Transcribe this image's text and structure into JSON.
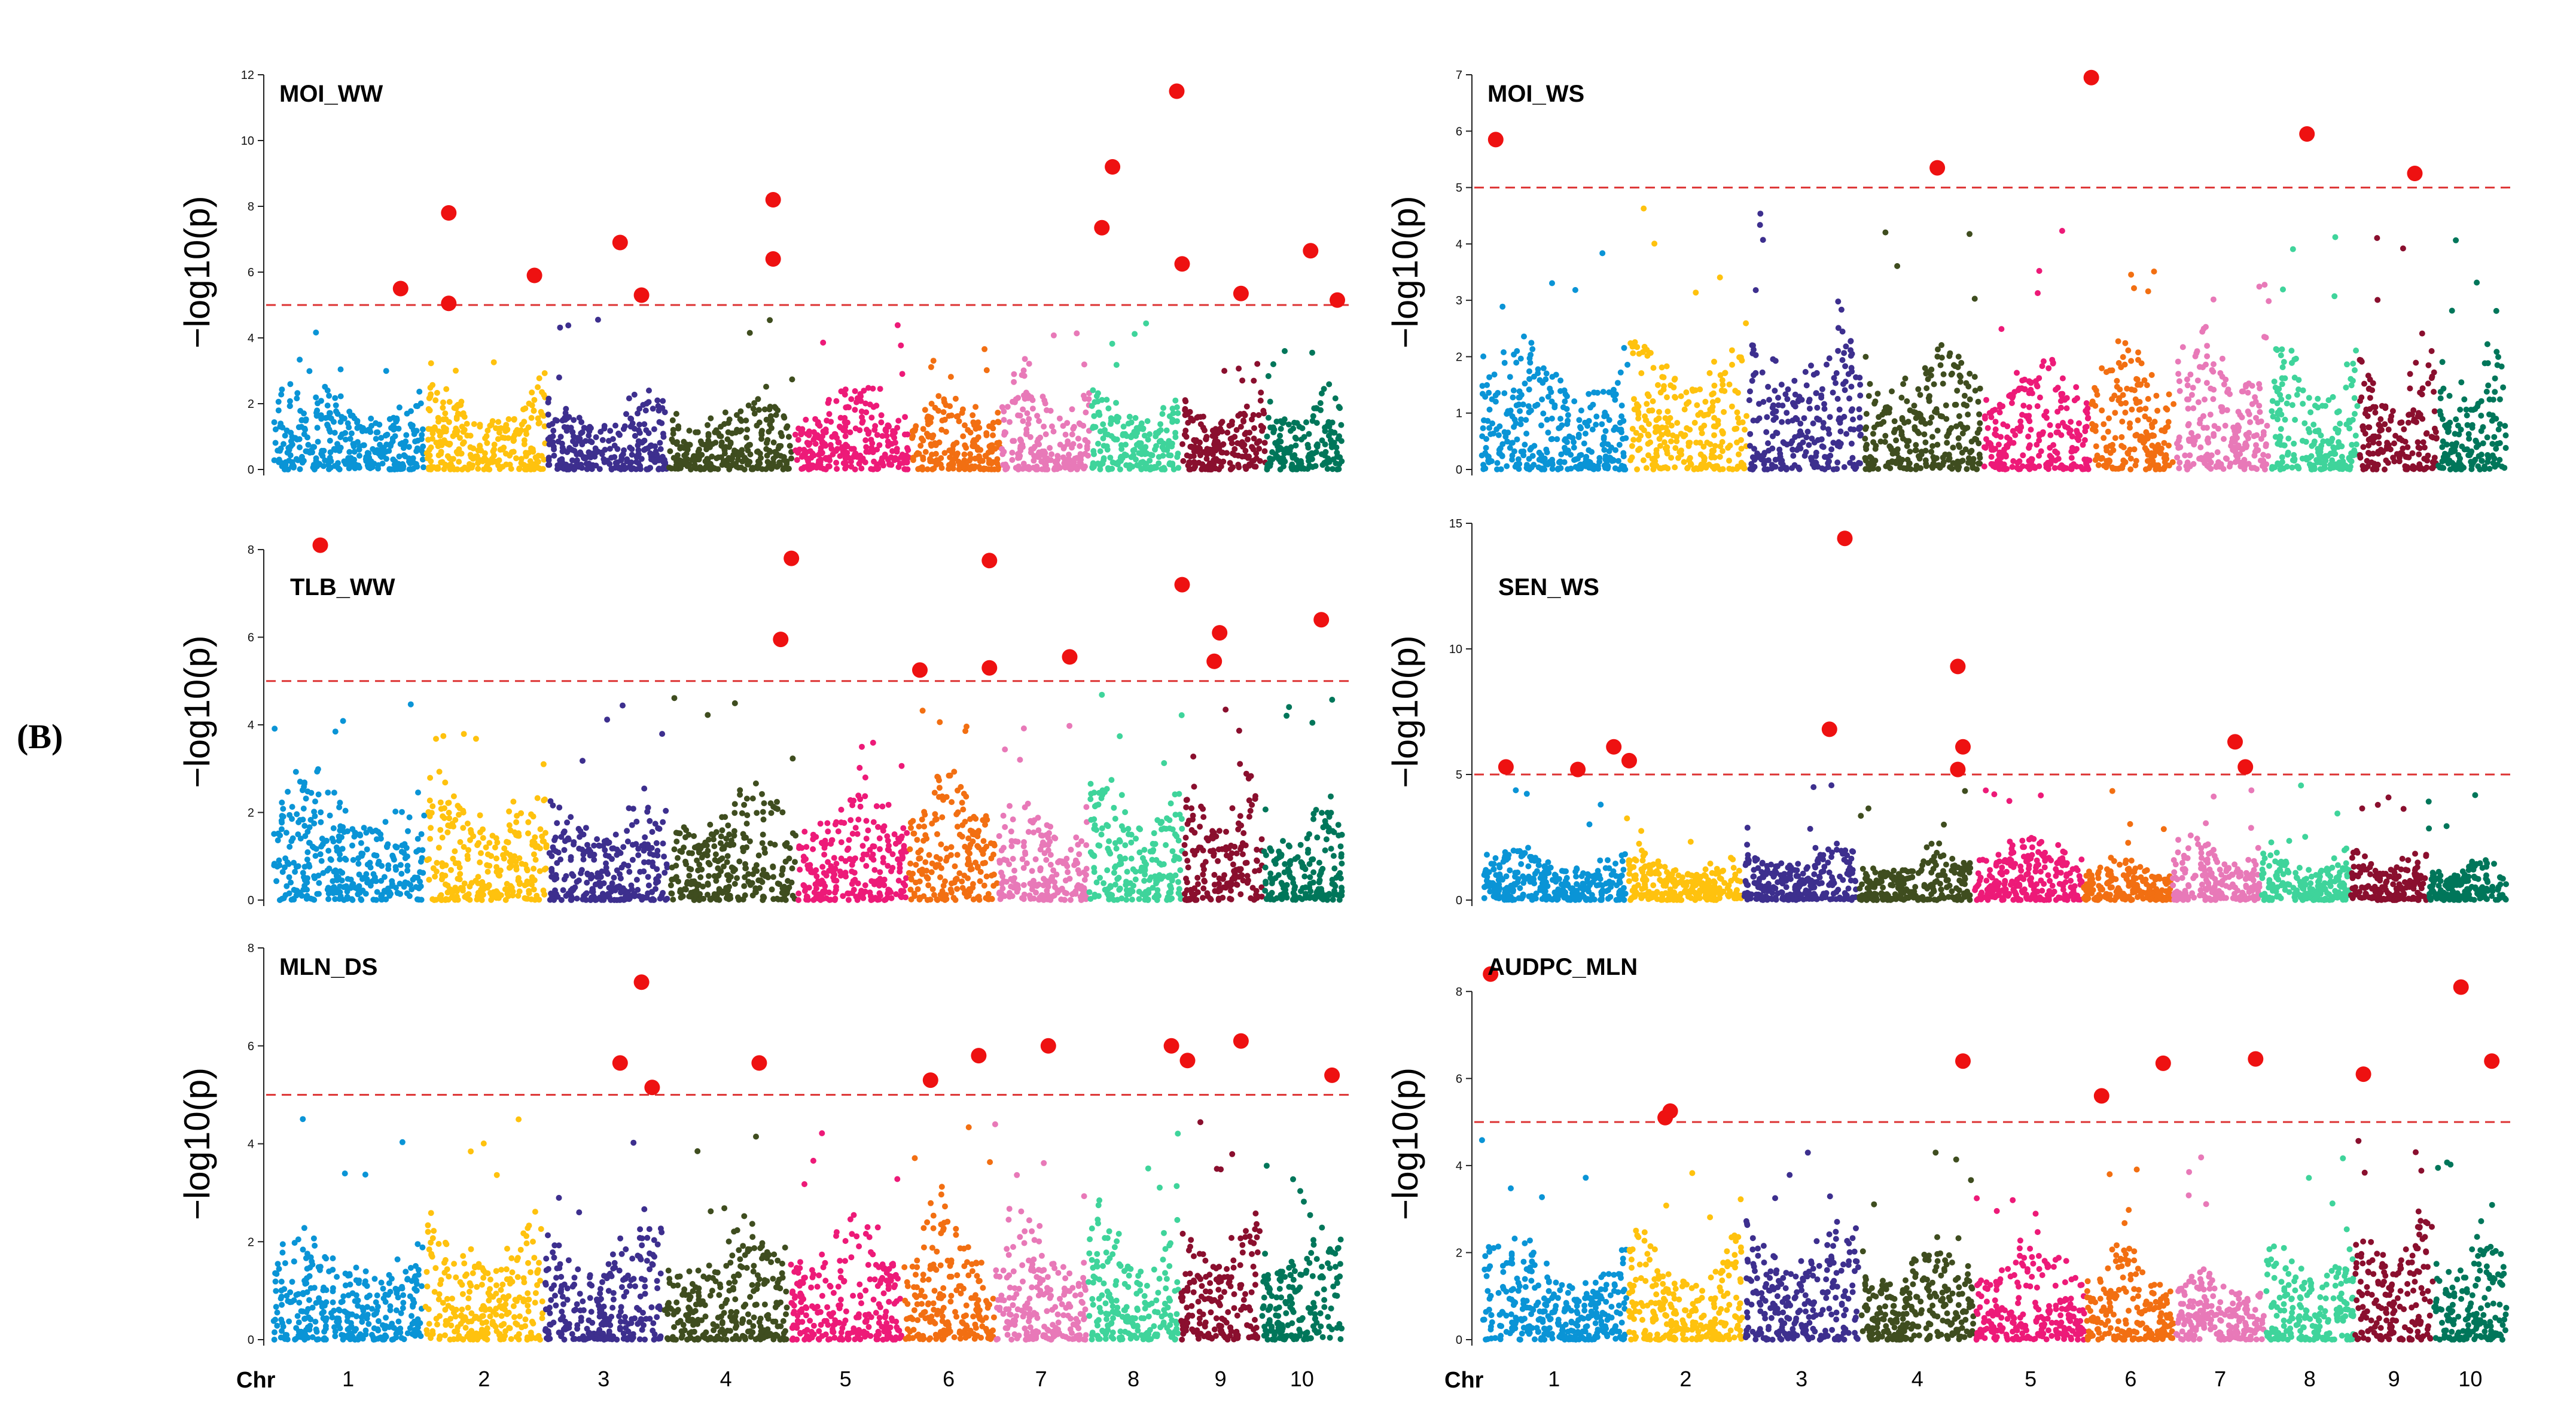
{
  "figure_label": "(B)",
  "axis": {
    "ylabel": "−log10(p)",
    "chr_word": "Chr",
    "chromosomes": [
      "1",
      "2",
      "3",
      "4",
      "5",
      "6",
      "7",
      "8",
      "9",
      "10"
    ]
  },
  "colors": {
    "chromosomes": [
      "#0a94d6",
      "#ffc20e",
      "#3d2f8e",
      "#3f4d1f",
      "#ed1a78",
      "#f26f12",
      "#e879b8",
      "#3fd49b",
      "#8a0f2e",
      "#00765a"
    ],
    "significant": "#ee1111",
    "threshold": "#dd3333",
    "axis": "#222222"
  },
  "chart_data": [
    {
      "type": "scatter",
      "title": "MOI_WW",
      "column": "left",
      "row": 0,
      "ylim": [
        0,
        12
      ],
      "yticks": [
        0,
        2,
        4,
        6,
        8,
        10,
        12
      ],
      "threshold": 5,
      "xlim": [
        0,
        10
      ],
      "chr_widths": [
        1.7,
        1.35,
        1.35,
        1.4,
        1.3,
        1.0,
        1.0,
        1.0,
        0.95,
        0.85
      ],
      "chr_levels": [
        2.9,
        2.7,
        2.5,
        2.4,
        2.8,
        2.7,
        3.1,
        2.6,
        2.7,
        2.7
      ],
      "significant_snps": [
        {
          "x": 1.2,
          "y": 5.5
        },
        {
          "x": 1.65,
          "y": 7.8
        },
        {
          "x": 1.65,
          "y": 5.05
        },
        {
          "x": 2.45,
          "y": 5.9
        },
        {
          "x": 3.25,
          "y": 6.9
        },
        {
          "x": 3.45,
          "y": 5.3
        },
        {
          "x": 4.68,
          "y": 8.2
        },
        {
          "x": 4.68,
          "y": 6.4
        },
        {
          "x": 7.75,
          "y": 7.35
        },
        {
          "x": 7.85,
          "y": 9.2
        },
        {
          "x": 8.45,
          "y": 11.5
        },
        {
          "x": 8.5,
          "y": 6.25
        },
        {
          "x": 9.05,
          "y": 5.35
        },
        {
          "x": 9.7,
          "y": 6.65
        },
        {
          "x": 9.95,
          "y": 5.15
        }
      ]
    },
    {
      "type": "scatter",
      "title": "MOI_WS",
      "column": "right",
      "row": 0,
      "ylim": [
        0,
        7
      ],
      "yticks": [
        0,
        1,
        2,
        3,
        4,
        5,
        6,
        7
      ],
      "threshold": 5,
      "xlim": [
        0,
        10
      ],
      "chr_widths": [
        1.5,
        1.2,
        1.15,
        1.2,
        1.1,
        0.85,
        0.95,
        0.9,
        0.8,
        0.7
      ],
      "chr_levels": [
        2.6,
        2.6,
        2.9,
        2.5,
        2.3,
        2.6,
        2.8,
        2.4,
        2.2,
        2.5
      ],
      "significant_snps": [
        {
          "x": 0.15,
          "y": 5.85
        },
        {
          "x": 4.45,
          "y": 5.35
        },
        {
          "x": 5.95,
          "y": 6.95
        },
        {
          "x": 8.05,
          "y": 5.95
        },
        {
          "x": 9.1,
          "y": 5.25
        }
      ]
    },
    {
      "type": "scatter",
      "title": "TLB_WW",
      "column": "left",
      "row": 1,
      "ylim": [
        0,
        8.6
      ],
      "yticks": [
        0,
        2,
        4,
        6,
        8
      ],
      "threshold": 5,
      "xlim": [
        0,
        10
      ],
      "chr_widths": [
        1.45,
        1.15,
        1.15,
        1.2,
        1.05,
        0.85,
        0.85,
        0.9,
        0.75,
        0.75
      ],
      "chr_levels": [
        3.0,
        3.0,
        2.6,
        2.9,
        2.8,
        3.6,
        2.6,
        3.0,
        2.9,
        2.4
      ],
      "significant_snps": [
        {
          "x": 0.45,
          "y": 8.1
        },
        {
          "x": 4.75,
          "y": 5.95
        },
        {
          "x": 4.85,
          "y": 7.8
        },
        {
          "x": 6.05,
          "y": 5.25
        },
        {
          "x": 6.7,
          "y": 7.75
        },
        {
          "x": 6.7,
          "y": 5.3
        },
        {
          "x": 7.45,
          "y": 5.55
        },
        {
          "x": 8.5,
          "y": 7.2
        },
        {
          "x": 8.85,
          "y": 6.1
        },
        {
          "x": 8.8,
          "y": 5.45
        },
        {
          "x": 9.8,
          "y": 6.4
        }
      ]
    },
    {
      "type": "scatter",
      "title": "SEN_WS",
      "column": "right",
      "row": 1,
      "ylim": [
        0,
        15
      ],
      "yticks": [
        0,
        5,
        10,
        15
      ],
      "threshold": 5,
      "xlim": [
        0,
        10
      ],
      "chr_widths": [
        1.4,
        1.1,
        1.1,
        1.1,
        1.05,
        0.85,
        0.85,
        0.85,
        0.75,
        0.75
      ],
      "chr_levels": [
        2.3,
        2.0,
        2.5,
        2.2,
        2.9,
        1.8,
        2.7,
        2.3,
        2.2,
        1.9
      ],
      "significant_snps": [
        {
          "x": 0.25,
          "y": 5.3
        },
        {
          "x": 0.95,
          "y": 5.2
        },
        {
          "x": 1.3,
          "y": 6.1
        },
        {
          "x": 1.45,
          "y": 5.55
        },
        {
          "x": 3.4,
          "y": 6.8
        },
        {
          "x": 3.55,
          "y": 14.4
        },
        {
          "x": 4.65,
          "y": 9.3
        },
        {
          "x": 4.7,
          "y": 6.1
        },
        {
          "x": 4.65,
          "y": 5.2
        },
        {
          "x": 7.35,
          "y": 6.3
        },
        {
          "x": 7.45,
          "y": 5.3
        }
      ]
    },
    {
      "type": "scatter",
      "title": "MLN_DS",
      "column": "left",
      "row": 2,
      "ylim": [
        0,
        8
      ],
      "yticks": [
        0,
        2,
        4,
        6,
        8
      ],
      "threshold": 5,
      "xlim": [
        0,
        10
      ],
      "chr_widths": [
        1.4,
        1.1,
        1.1,
        1.15,
        1.05,
        0.85,
        0.85,
        0.85,
        0.75,
        0.75
      ],
      "chr_levels": [
        2.3,
        2.8,
        2.5,
        2.6,
        2.8,
        3.0,
        2.7,
        2.8,
        2.7,
        2.8
      ],
      "significant_snps": [
        {
          "x": 3.25,
          "y": 5.65
        },
        {
          "x": 3.45,
          "y": 7.3
        },
        {
          "x": 3.55,
          "y": 5.15
        },
        {
          "x": 4.55,
          "y": 5.65
        },
        {
          "x": 6.15,
          "y": 5.3
        },
        {
          "x": 6.6,
          "y": 5.8
        },
        {
          "x": 7.25,
          "y": 6.0
        },
        {
          "x": 8.4,
          "y": 6.0
        },
        {
          "x": 8.55,
          "y": 5.7
        },
        {
          "x": 9.05,
          "y": 6.1
        },
        {
          "x": 9.9,
          "y": 5.4
        }
      ]
    },
    {
      "type": "scatter",
      "title": "AUDPC_MLN",
      "column": "right",
      "row": 2,
      "ylim": [
        0,
        9
      ],
      "yticks": [
        0,
        2,
        4,
        6,
        8
      ],
      "threshold": 5,
      "xlim": [
        0,
        10
      ],
      "chr_widths": [
        1.4,
        1.1,
        1.1,
        1.1,
        1.05,
        0.85,
        0.85,
        0.85,
        0.75,
        0.7
      ],
      "chr_levels": [
        2.4,
        2.5,
        2.9,
        2.6,
        2.5,
        2.4,
        1.8,
        2.4,
        3.2,
        2.9
      ],
      "significant_snps": [
        {
          "x": 0.1,
          "y": 8.4
        },
        {
          "x": 1.8,
          "y": 5.1
        },
        {
          "x": 1.85,
          "y": 5.25
        },
        {
          "x": 4.7,
          "y": 6.4
        },
        {
          "x": 6.05,
          "y": 5.6
        },
        {
          "x": 6.65,
          "y": 6.35
        },
        {
          "x": 7.55,
          "y": 6.45
        },
        {
          "x": 8.6,
          "y": 6.1
        },
        {
          "x": 9.55,
          "y": 8.1
        },
        {
          "x": 9.85,
          "y": 6.4
        }
      ]
    }
  ]
}
